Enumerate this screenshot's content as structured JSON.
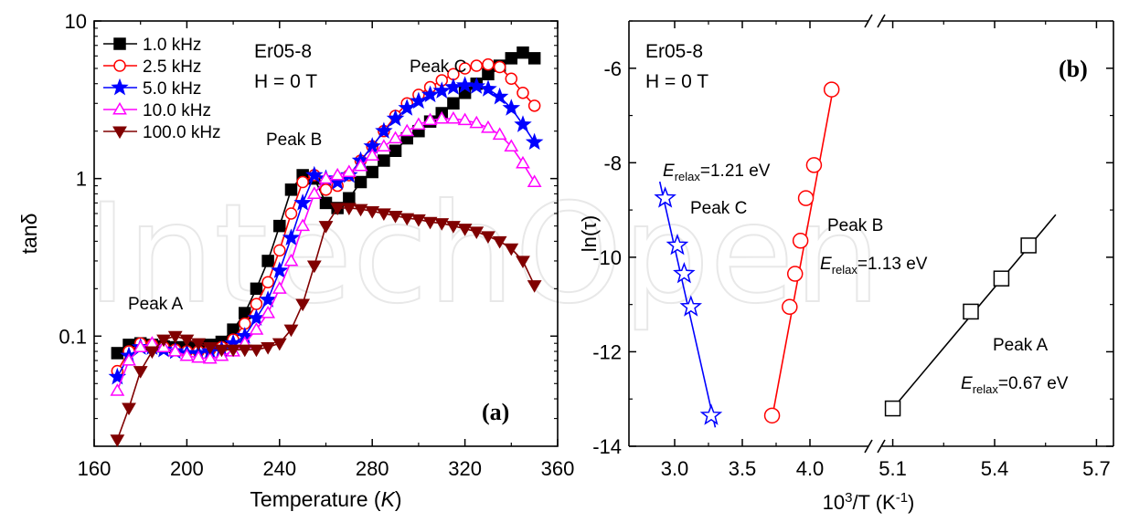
{
  "watermark": "IntechOpen",
  "chart_data": [
    {
      "panel": "(a)",
      "type": "scatter-line",
      "xlabel": "Temperature (K)",
      "ylabel": "tanδ",
      "xlim": [
        160,
        360
      ],
      "ylim": [
        0.02,
        10
      ],
      "yscale": "log",
      "x_ticks": [
        "160",
        "200",
        "240",
        "280",
        "320",
        "360"
      ],
      "y_ticks": [
        "0.1",
        "1",
        "10"
      ],
      "legend_position": "top-left",
      "annotations": [
        "Er05-8",
        "H = 0 T",
        "Peak A",
        "Peak B",
        "Peak C"
      ],
      "series": [
        {
          "name": "1.0 kHz",
          "color": "#000000",
          "marker": "square-filled",
          "x": [
            170,
            175,
            180,
            185,
            190,
            195,
            200,
            205,
            210,
            215,
            220,
            225,
            230,
            235,
            240,
            245,
            250,
            255,
            260,
            265,
            270,
            275,
            280,
            285,
            290,
            295,
            300,
            305,
            310,
            315,
            320,
            325,
            330,
            335,
            340,
            345,
            350
          ],
          "y": [
            0.078,
            0.088,
            0.09,
            0.088,
            0.086,
            0.085,
            0.085,
            0.086,
            0.088,
            0.092,
            0.11,
            0.14,
            0.2,
            0.3,
            0.5,
            0.85,
            1.05,
            1.0,
            0.7,
            0.65,
            0.75,
            0.95,
            1.1,
            1.3,
            1.5,
            1.8,
            2.0,
            2.3,
            2.6,
            3.0,
            3.5,
            4.0,
            4.6,
            5.2,
            5.8,
            6.3,
            5.8
          ]
        },
        {
          "name": "2.5 kHz",
          "color": "#ff0000",
          "marker": "circle-open",
          "x": [
            170,
            175,
            180,
            185,
            190,
            195,
            200,
            205,
            210,
            215,
            220,
            225,
            230,
            235,
            240,
            245,
            250,
            255,
            260,
            265,
            270,
            275,
            280,
            285,
            290,
            295,
            300,
            305,
            310,
            315,
            320,
            325,
            330,
            335,
            340,
            345,
            350
          ],
          "y": [
            0.06,
            0.08,
            0.09,
            0.088,
            0.085,
            0.082,
            0.08,
            0.08,
            0.082,
            0.085,
            0.095,
            0.12,
            0.16,
            0.22,
            0.35,
            0.6,
            0.95,
            1.05,
            0.85,
            0.9,
            1.05,
            1.3,
            1.6,
            2.0,
            2.5,
            3.0,
            3.4,
            3.8,
            4.2,
            4.6,
            5.0,
            5.2,
            5.3,
            5.1,
            4.3,
            3.5,
            2.9
          ]
        },
        {
          "name": "5.0 kHz",
          "color": "#0000ff",
          "marker": "star-filled",
          "x": [
            170,
            175,
            180,
            185,
            190,
            195,
            200,
            205,
            210,
            215,
            220,
            225,
            230,
            235,
            240,
            245,
            250,
            255,
            260,
            265,
            270,
            275,
            280,
            285,
            290,
            295,
            300,
            305,
            310,
            315,
            320,
            325,
            330,
            335,
            340,
            345,
            350
          ],
          "y": [
            0.055,
            0.075,
            0.085,
            0.085,
            0.082,
            0.08,
            0.078,
            0.078,
            0.08,
            0.082,
            0.09,
            0.1,
            0.13,
            0.17,
            0.26,
            0.42,
            0.7,
            1.05,
            1.0,
            0.95,
            1.05,
            1.3,
            1.6,
            2.0,
            2.4,
            2.8,
            3.1,
            3.4,
            3.6,
            3.8,
            3.9,
            3.85,
            3.7,
            3.3,
            2.8,
            2.2,
            1.7
          ]
        },
        {
          "name": "10.0 kHz",
          "color": "#ff00ff",
          "marker": "triangle-open",
          "x": [
            170,
            175,
            180,
            185,
            190,
            195,
            200,
            205,
            210,
            215,
            220,
            225,
            230,
            235,
            240,
            245,
            250,
            255,
            260,
            265,
            270,
            275,
            280,
            285,
            290,
            295,
            300,
            305,
            310,
            315,
            320,
            325,
            330,
            335,
            340,
            345,
            350
          ],
          "y": [
            0.045,
            0.07,
            0.085,
            0.09,
            0.085,
            0.08,
            0.075,
            0.073,
            0.072,
            0.075,
            0.08,
            0.09,
            0.11,
            0.14,
            0.2,
            0.3,
            0.5,
            0.8,
            1.0,
            1.05,
            1.1,
            1.2,
            1.4,
            1.6,
            1.8,
            2.0,
            2.2,
            2.35,
            2.4,
            2.4,
            2.35,
            2.25,
            2.1,
            1.9,
            1.6,
            1.25,
            0.95
          ]
        },
        {
          "name": "100.0 kHz",
          "color": "#800000",
          "marker": "triangle-down-filled",
          "x": [
            170,
            175,
            180,
            185,
            190,
            195,
            200,
            205,
            210,
            215,
            220,
            225,
            230,
            235,
            240,
            245,
            250,
            255,
            260,
            265,
            270,
            275,
            280,
            285,
            290,
            295,
            300,
            305,
            310,
            315,
            320,
            325,
            330,
            335,
            340,
            345,
            350
          ],
          "y": [
            0.022,
            0.035,
            0.06,
            0.08,
            0.095,
            0.1,
            0.095,
            0.09,
            0.085,
            0.082,
            0.082,
            0.082,
            0.082,
            0.085,
            0.09,
            0.11,
            0.16,
            0.28,
            0.5,
            0.65,
            0.65,
            0.64,
            0.62,
            0.6,
            0.58,
            0.56,
            0.55,
            0.53,
            0.52,
            0.5,
            0.48,
            0.46,
            0.43,
            0.4,
            0.36,
            0.3,
            0.21
          ]
        }
      ]
    },
    {
      "panel": "(b)",
      "type": "scatter-line",
      "xlabel": "10³/T (K⁻¹)",
      "ylabel": "ln(τ)",
      "ylim": [
        -14,
        -5
      ],
      "x_axis_break": "between 4.2 and 5.1",
      "x_ticks": [
        "3.0",
        "3.5",
        "4.0",
        "5.1",
        "5.4",
        "5.7"
      ],
      "y_ticks": [
        "-14",
        "-12",
        "-10",
        "-8",
        "-6"
      ],
      "annotations": [
        "Er05-8",
        "H = 0 T",
        "Peak A",
        "Peak B",
        "Peak C",
        "E relax=1.21 eV",
        "E relax=1.13 eV",
        "E relax=0.67 eV"
      ],
      "series": [
        {
          "name": "Peak C",
          "color": "#0000ff",
          "marker": "star-open",
          "E_relax_eV": 1.21,
          "x": [
            2.93,
            3.02,
            3.07,
            3.12,
            3.27
          ],
          "y": [
            -8.75,
            -9.75,
            -10.35,
            -11.05,
            -13.35
          ]
        },
        {
          "name": "Peak B",
          "color": "#ff0000",
          "marker": "circle-open",
          "E_relax_eV": 1.13,
          "x": [
            3.72,
            3.85,
            3.89,
            3.93,
            3.97,
            4.03,
            4.16
          ],
          "y": [
            -13.35,
            -11.05,
            -10.35,
            -9.65,
            -8.75,
            -8.05,
            -6.45
          ]
        },
        {
          "name": "Peak A",
          "color": "#000000",
          "marker": "square-open",
          "E_relax_eV": 0.67,
          "x": [
            5.1,
            5.33,
            5.42,
            5.5
          ],
          "y": [
            -13.2,
            -11.15,
            -10.45,
            -9.75
          ]
        }
      ]
    }
  ]
}
